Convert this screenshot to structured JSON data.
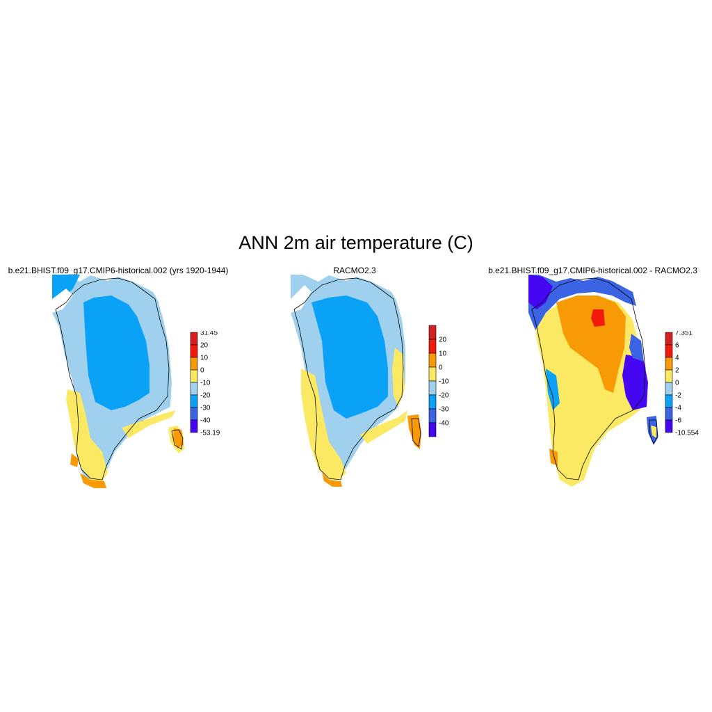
{
  "title": "ANN 2m air temperature (C)",
  "panels": [
    {
      "title": "b.e21.BHIST.f09_g17.CMIP6-historical.002 (yrs 1920-1944)",
      "colorbar": {
        "labels": [
          "31.45",
          "20",
          "10",
          "0",
          "-10",
          "-20",
          "-30",
          "-40",
          "-53.19"
        ],
        "colors": [
          "#d42020",
          "#f21b0b",
          "#f89a05",
          "#fbe964",
          "#9fd1ee",
          "#0aa2f6",
          "#3a64e4",
          "#4506f2"
        ]
      },
      "regions": [
        "#9fd1ee",
        "#0aa2f6",
        "#fbe964",
        "#f89a05"
      ]
    },
    {
      "title": "RACMO2.3",
      "colorbar": {
        "labels": [
          "20",
          "10",
          "0",
          "-10",
          "-20",
          "-30",
          "-40"
        ],
        "colors": [
          "#d42020",
          "#f21b0b",
          "#f89a05",
          "#fbe964",
          "#9fd1ee",
          "#0aa2f6",
          "#3a64e4",
          "#4506f2"
        ]
      },
      "regions": [
        "#9fd1ee",
        "#0aa2f6",
        "#fbe964",
        "#f89a05"
      ]
    },
    {
      "title": "b.e21.BHIST.f09_g17.CMIP6-historical.002 - RACMO2.3",
      "colorbar": {
        "labels": [
          "7.351",
          "6",
          "4",
          "2",
          "0",
          "-2",
          "-4",
          "-6",
          "-10.554"
        ],
        "colors": [
          "#d42020",
          "#f21b0b",
          "#f89a05",
          "#fbe964",
          "#9fd1ee",
          "#0aa2f6",
          "#3a64e4",
          "#4506f2"
        ]
      },
      "regions": [
        "#fbe964",
        "#f89a05",
        "#f21b0b",
        "#4506f2",
        "#3a64e4",
        "#0aa2f6"
      ]
    }
  ]
}
